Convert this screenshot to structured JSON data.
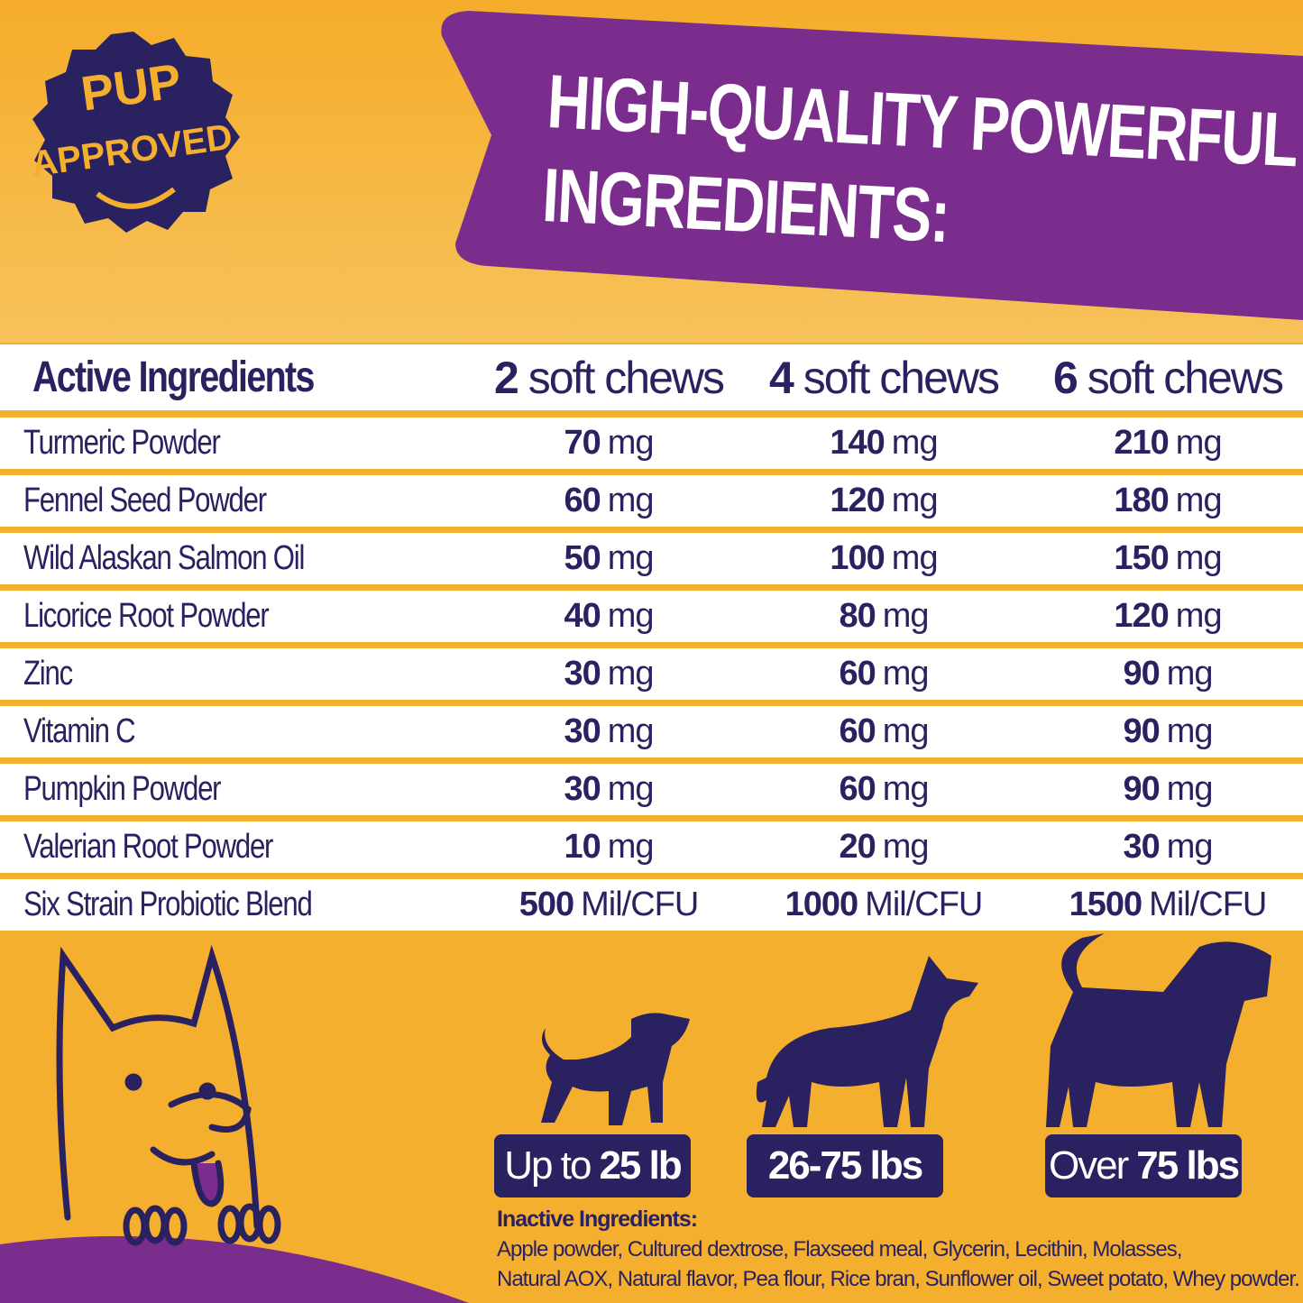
{
  "badge": {
    "line1": "PUP",
    "line2": "APPROVED"
  },
  "title": {
    "line1": "HIGH-QUALITY POWERFUL",
    "line2": "INGREDIENTS:"
  },
  "colors": {
    "background": "#F5AF2E",
    "banner": "#7B2D8E",
    "navy": "#2A2160",
    "row": "#FFFFFF"
  },
  "table": {
    "headers": [
      {
        "label": "Active Ingredients"
      },
      {
        "num": "2",
        "label": "soft chews"
      },
      {
        "num": "4",
        "label": "soft chews"
      },
      {
        "num": "6",
        "label": "soft chews"
      }
    ],
    "rows": [
      {
        "name": "Turmeric Powder",
        "v": [
          {
            "n": "70",
            "u": "mg"
          },
          {
            "n": "140",
            "u": "mg"
          },
          {
            "n": "210",
            "u": "mg"
          }
        ]
      },
      {
        "name": "Fennel Seed Powder",
        "v": [
          {
            "n": "60",
            "u": "mg"
          },
          {
            "n": "120",
            "u": "mg"
          },
          {
            "n": "180",
            "u": "mg"
          }
        ]
      },
      {
        "name": "Wild Alaskan Salmon Oil",
        "v": [
          {
            "n": "50",
            "u": "mg"
          },
          {
            "n": "100",
            "u": "mg"
          },
          {
            "n": "150",
            "u": "mg"
          }
        ]
      },
      {
        "name": "Licorice Root Powder",
        "v": [
          {
            "n": "40",
            "u": "mg"
          },
          {
            "n": "80",
            "u": "mg"
          },
          {
            "n": "120",
            "u": "mg"
          }
        ]
      },
      {
        "name": "Zinc",
        "v": [
          {
            "n": "30",
            "u": "mg"
          },
          {
            "n": "60",
            "u": "mg"
          },
          {
            "n": "90",
            "u": "mg"
          }
        ]
      },
      {
        "name": "Vitamin C",
        "v": [
          {
            "n": "30",
            "u": "mg"
          },
          {
            "n": "60",
            "u": "mg"
          },
          {
            "n": "90",
            "u": "mg"
          }
        ]
      },
      {
        "name": "Pumpkin Powder",
        "v": [
          {
            "n": "30",
            "u": "mg"
          },
          {
            "n": "60",
            "u": "mg"
          },
          {
            "n": "90",
            "u": "mg"
          }
        ]
      },
      {
        "name": "Valerian Root Powder",
        "v": [
          {
            "n": "10",
            "u": "mg"
          },
          {
            "n": "20",
            "u": "mg"
          },
          {
            "n": "30",
            "u": "mg"
          }
        ]
      },
      {
        "name": "Six Strain Probiotic Blend",
        "v": [
          {
            "n": "500",
            "u": "Mil/CFU"
          },
          {
            "n": "1000",
            "u": "Mil/CFU"
          },
          {
            "n": "1500",
            "u": "Mil/CFU"
          }
        ]
      }
    ]
  },
  "sizes": [
    {
      "pre": "Up to",
      "bold": "25 lb",
      "post": ""
    },
    {
      "pre": "",
      "bold": "26-75 lbs",
      "post": ""
    },
    {
      "pre": "Over",
      "bold": "75 lbs",
      "post": ""
    }
  ],
  "inactive": {
    "heading": "Inactive Ingredients:",
    "line1": "Apple powder, Cultured dextrose, Flaxseed meal, Glycerin, Lecithin, Molasses,",
    "line2": "Natural AOX, Natural flavor, Pea flour, Rice bran, Sunflower oil, Sweet potato, Whey powder."
  }
}
